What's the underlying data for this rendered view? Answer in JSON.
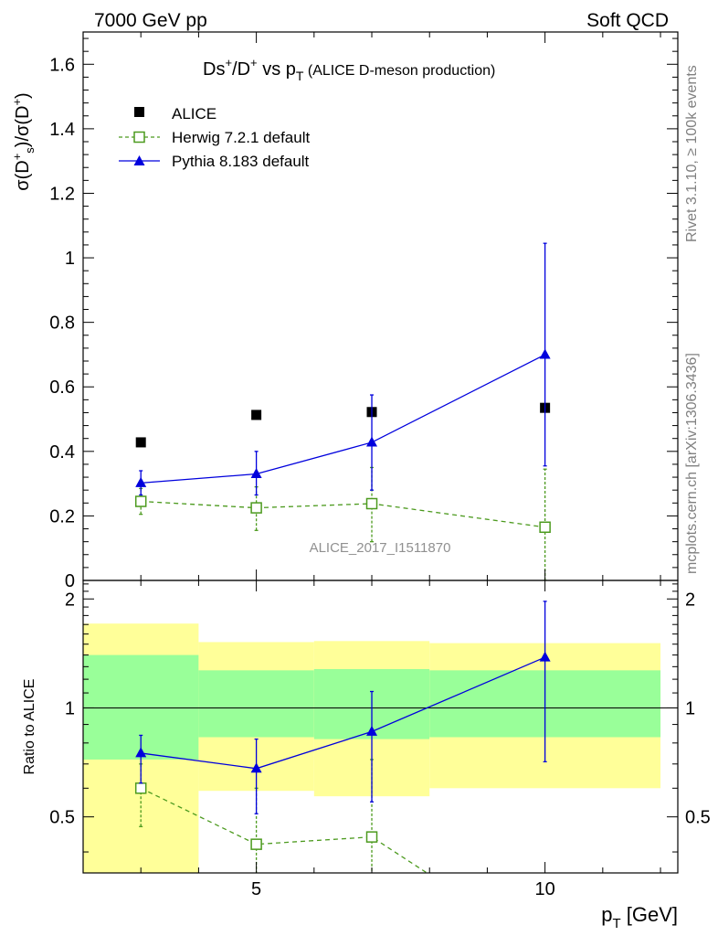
{
  "header": {
    "left_label": "7000 GeV pp",
    "right_label": "Soft QCD"
  },
  "side_labels": {
    "rivet": "Rivet 3.1.10, ≥ 100k events",
    "mcplots": "mcplots.cern.ch [arXiv:1306.3436]"
  },
  "chart_data": [
    {
      "type": "scatter",
      "panel": "main",
      "title_main": "Ds",
      "title_sup1": "+",
      "title_mid": "/D",
      "title_sup2": "+",
      "title_vs": " vs p",
      "title_sub": "T",
      "title_paren": " (ALICE D-meson production)",
      "ylabel": "σ(D+s)/σ(D+)",
      "watermark": "ALICE_2017_I1511870",
      "xlim": [
        2,
        12.3
      ],
      "ylim": [
        0,
        1.7
      ],
      "yticks": [
        {
          "value": 0,
          "label": "0"
        },
        {
          "value": 0.2,
          "label": "0.2"
        },
        {
          "value": 0.4,
          "label": "0.4"
        },
        {
          "value": 0.6,
          "label": "0.6"
        },
        {
          "value": 0.8,
          "label": "0.8"
        },
        {
          "value": 1.0,
          "label": "1"
        },
        {
          "value": 1.2,
          "label": "1.2"
        },
        {
          "value": 1.4,
          "label": "1.4"
        },
        {
          "value": 1.6,
          "label": "1.6"
        }
      ],
      "legend": {
        "placement": "top-left",
        "entries": [
          "ALICE",
          "Herwig 7.2.1 default",
          "Pythia 8.183 default"
        ]
      },
      "series": [
        {
          "name": "ALICE",
          "marker": "filled-square",
          "color": "#000000",
          "x": [
            3,
            5,
            7,
            10
          ],
          "y": [
            0.428,
            0.513,
            0.522,
            0.535
          ]
        },
        {
          "name": "Herwig 7.2.1 default",
          "marker": "open-square",
          "color": "#4c9a1e",
          "line": "dashed",
          "x": [
            3,
            5,
            7,
            10
          ],
          "y": [
            0.245,
            0.225,
            0.238,
            0.165
          ],
          "err_lo": [
            0.205,
            0.155,
            0.12,
            0
          ],
          "err_hi": [
            0.285,
            0.29,
            0.35,
            0.345
          ]
        },
        {
          "name": "Pythia 8.183 default",
          "marker": "filled-triangle",
          "color": "#0000dd",
          "line": "solid",
          "x": [
            3,
            5,
            7,
            10
          ],
          "y": [
            0.302,
            0.33,
            0.428,
            0.7
          ],
          "err_lo": [
            0.265,
            0.265,
            0.28,
            0.355
          ],
          "err_hi": [
            0.34,
            0.4,
            0.575,
            1.045
          ]
        }
      ]
    },
    {
      "type": "scatter",
      "panel": "ratio",
      "ylabel": "Ratio to ALICE",
      "xlabel_main": "p",
      "xlabel_sub": "T",
      "xlabel_unit": " [GeV]",
      "xlim": [
        2,
        12.3
      ],
      "ylim": [
        0.35,
        2.25
      ],
      "xticks": [
        {
          "value": 5,
          "label": "5"
        },
        {
          "value": 10,
          "label": "10"
        }
      ],
      "yticks": [
        {
          "value": 0.5,
          "label": "0.5"
        },
        {
          "value": 1,
          "label": "1"
        },
        {
          "value": 2,
          "label": "2"
        }
      ],
      "bands": [
        {
          "x0": 2,
          "x1": 4,
          "yellow": [
            0.35,
            1.71
          ],
          "green": [
            0.72,
            1.4
          ]
        },
        {
          "x0": 4,
          "x1": 6,
          "yellow": [
            0.59,
            1.52
          ],
          "green": [
            0.83,
            1.27
          ]
        },
        {
          "x0": 6,
          "x1": 8,
          "yellow": [
            0.57,
            1.53
          ],
          "green": [
            0.82,
            1.28
          ]
        },
        {
          "x0": 8,
          "x1": 12,
          "yellow": [
            0.6,
            1.51
          ],
          "green": [
            0.83,
            1.27
          ]
        }
      ],
      "series": [
        {
          "name": "Herwig 7.2.1 default",
          "marker": "open-square",
          "color": "#4c9a1e",
          "line": "dashed",
          "x": [
            3,
            5,
            7,
            8.2
          ],
          "y": [
            0.6,
            0.42,
            0.44,
            0.33
          ],
          "err_lo": [
            0.47,
            0.31,
            0.25,
            null
          ],
          "err_hi": [
            0.7,
            0.6,
            0.72,
            null
          ]
        },
        {
          "name": "Pythia 8.183 default",
          "marker": "filled-triangle",
          "color": "#0000dd",
          "line": "solid",
          "x": [
            3,
            5,
            7,
            10
          ],
          "y": [
            0.75,
            0.68,
            0.86,
            1.38
          ],
          "err_lo": [
            0.62,
            0.51,
            0.55,
            0.71
          ],
          "err_hi": [
            0.84,
            0.82,
            1.11,
            1.97
          ]
        }
      ]
    }
  ]
}
